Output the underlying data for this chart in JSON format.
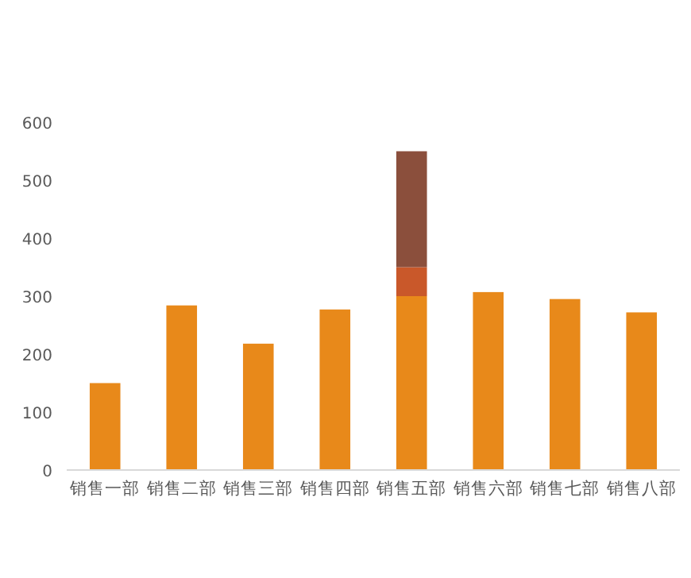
{
  "chart_data": {
    "type": "bar",
    "stacked": true,
    "categories": [
      "销售一部",
      "销售二部",
      "销售三部",
      "销售四部",
      "销售五部",
      "销售六部",
      "销售七部",
      "销售八部"
    ],
    "series": [
      {
        "color": "#e8891a",
        "values": [
          150,
          284,
          218,
          277,
          300,
          307,
          295,
          272
        ]
      },
      {
        "color": "#c9582a",
        "values": [
          null,
          null,
          null,
          null,
          50,
          null,
          null,
          null
        ]
      },
      {
        "color": "#8b4f3c",
        "values": [
          null,
          null,
          null,
          null,
          200,
          null,
          null,
          null
        ]
      }
    ],
    "ylim": [
      0,
      600
    ],
    "yticks": [
      0,
      100,
      200,
      300,
      400,
      500,
      600
    ]
  }
}
